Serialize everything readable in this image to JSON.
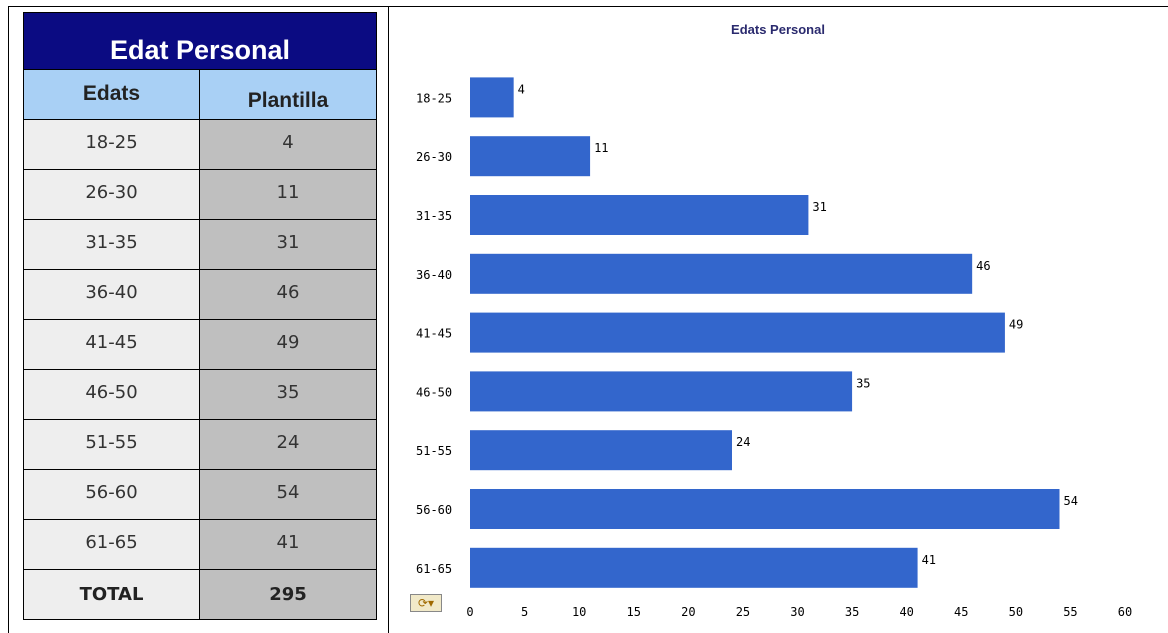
{
  "table": {
    "title": "Edat Personal",
    "headers": [
      "Edats",
      "Plantilla"
    ],
    "rows": [
      {
        "range": "18-25",
        "count": "4"
      },
      {
        "range": "26-30",
        "count": "11"
      },
      {
        "range": "31-35",
        "count": "31"
      },
      {
        "range": "36-40",
        "count": "46"
      },
      {
        "range": "41-45",
        "count": "49"
      },
      {
        "range": "46-50",
        "count": "35"
      },
      {
        "range": "51-55",
        "count": "24"
      },
      {
        "range": "56-60",
        "count": "54"
      },
      {
        "range": "61-65",
        "count": "41"
      }
    ],
    "total_label": "TOTAL",
    "total_value": "295"
  },
  "chart_data": {
    "type": "bar",
    "orientation": "horizontal",
    "title": "Edats Personal",
    "categories": [
      "18-25",
      "26-30",
      "31-35",
      "36-40",
      "41-45",
      "46-50",
      "51-55",
      "56-60",
      "61-65"
    ],
    "values": [
      4,
      11,
      31,
      46,
      49,
      35,
      24,
      54,
      41
    ],
    "xlim": [
      0,
      60
    ],
    "xticks": [
      0,
      5,
      10,
      15,
      20,
      25,
      30,
      35,
      40,
      45,
      50,
      55,
      60
    ],
    "bar_color": "#3366cc",
    "grid": false,
    "legend": "none",
    "data_labels": true
  },
  "icons": {
    "chart_options": "refresh-dropdown-icon"
  }
}
